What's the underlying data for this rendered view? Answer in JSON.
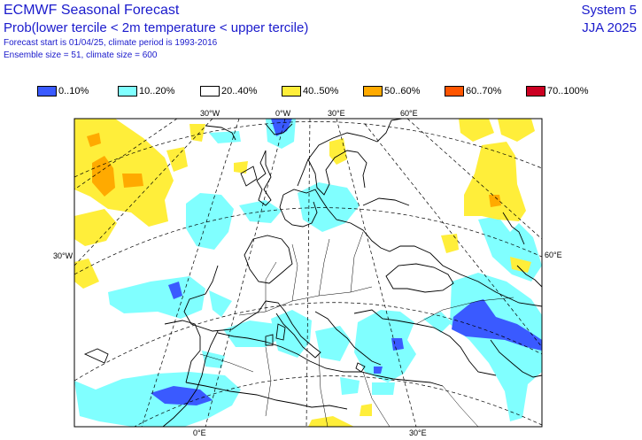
{
  "header": {
    "title": "ECMWF Seasonal Forecast",
    "subtitle": "Prob(lower tercile < 2m temperature < upper tercile)",
    "forecast_line": "Forecast start is 01/04/25, climate period is 1993-2016",
    "ensemble_line": "Ensemble size = 51, climate size = 600",
    "system": "System 5",
    "season": "JJA 2025"
  },
  "legend": [
    {
      "label": "0..10%",
      "color": "#3a5aff"
    },
    {
      "label": "10..20%",
      "color": "#80ffff"
    },
    {
      "label": "20..40%",
      "color": "#ffffff"
    },
    {
      "label": "40..50%",
      "color": "#ffee3a"
    },
    {
      "label": "50..60%",
      "color": "#ffaa00"
    },
    {
      "label": "60..70%",
      "color": "#ff5500"
    },
    {
      "label": "70..100%",
      "color": "#cc0022"
    }
  ],
  "graticule_labels": {
    "top": [
      "30°W",
      "0°W",
      "30°E",
      "60°E"
    ],
    "left": "30°W",
    "right": "60°E",
    "bottom": [
      "0°E",
      "30°E"
    ]
  }
}
